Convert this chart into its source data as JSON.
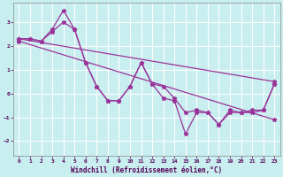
{
  "xlabel": "Windchill (Refroidissement éolien,°C)",
  "background_color": "#c8eef0",
  "grid_color": "#aadddd",
  "line_color": "#993399",
  "xlim": [
    -0.5,
    23.5
  ],
  "ylim": [
    -2.6,
    3.8
  ],
  "yticks": [
    -2,
    -1,
    0,
    1,
    2,
    3
  ],
  "xticks": [
    0,
    1,
    2,
    3,
    4,
    5,
    6,
    7,
    8,
    9,
    10,
    11,
    12,
    13,
    14,
    15,
    16,
    17,
    18,
    19,
    20,
    21,
    22,
    23
  ],
  "series": [
    {
      "x": [
        0,
        23
      ],
      "y": [
        2.3,
        0.5
      ],
      "dashed": false
    },
    {
      "x": [
        0,
        23
      ],
      "y": [
        2.2,
        -1.1
      ],
      "dashed": false
    },
    {
      "x": [
        0,
        1,
        2,
        3,
        4,
        5,
        6,
        7,
        8,
        9,
        10,
        11,
        12,
        13,
        14,
        15,
        16,
        17,
        18,
        19,
        20,
        21,
        22,
        23
      ],
      "y": [
        2.3,
        2.3,
        2.2,
        2.7,
        3.5,
        2.7,
        1.3,
        0.3,
        -0.3,
        -0.3,
        0.3,
        1.3,
        0.4,
        -0.2,
        -0.3,
        -1.7,
        -0.8,
        -0.8,
        -1.3,
        -0.8,
        -0.8,
        -0.8,
        -0.7,
        0.4
      ],
      "dashed": false
    },
    {
      "x": [
        0,
        1,
        2,
        3,
        4,
        5,
        6,
        7,
        8,
        9,
        10,
        11,
        12,
        13,
        14,
        15,
        16,
        17,
        18,
        19,
        20,
        21,
        22,
        23
      ],
      "y": [
        2.3,
        2.3,
        2.2,
        2.6,
        3.0,
        2.7,
        1.3,
        0.3,
        -0.3,
        -0.3,
        0.3,
        1.3,
        0.4,
        0.3,
        -0.2,
        -0.8,
        -0.7,
        -0.8,
        -1.3,
        -0.7,
        -0.8,
        -0.7,
        -0.7,
        0.4
      ],
      "dashed": false
    }
  ]
}
